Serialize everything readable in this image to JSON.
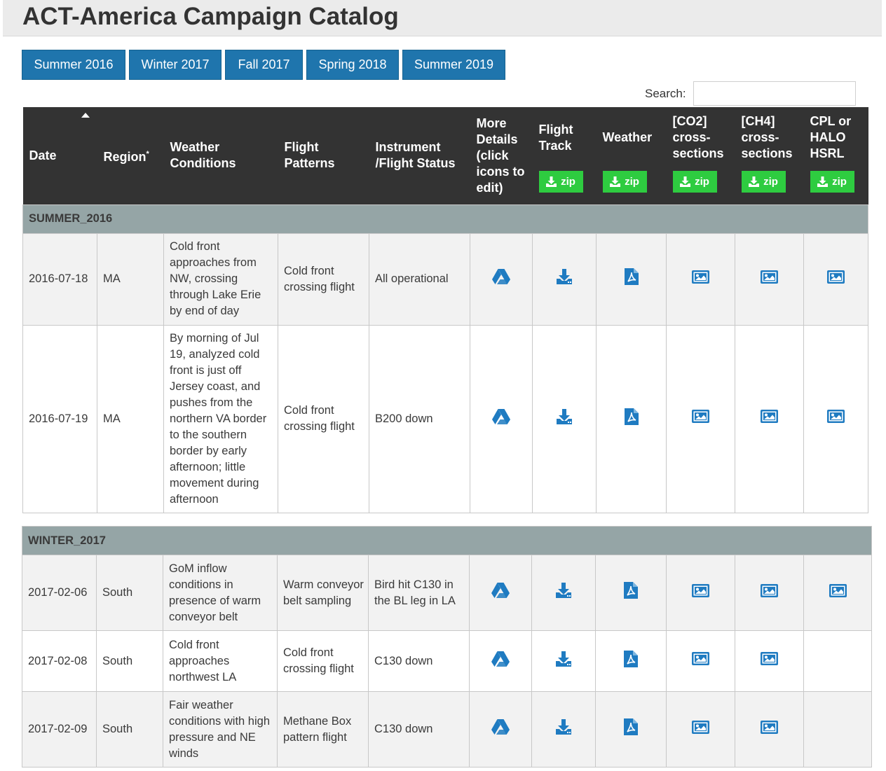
{
  "page": {
    "title": "ACT-America Campaign Catalog"
  },
  "tabs": [
    "Summer 2016",
    "Winter 2017",
    "Fall 2017",
    "Spring 2018",
    "Summer 2019"
  ],
  "search": {
    "label": "Search:",
    "value": ""
  },
  "table": {
    "headers": {
      "date": "Date",
      "region": "Region",
      "region_mark": "*",
      "weather": "Weather Conditions",
      "flight_patterns": "Flight Patterns",
      "instrument": "Instrument /Flight Status",
      "more_details": "More Details (click icons to edit)",
      "flight_track": "Flight Track",
      "weather_files": "Weather",
      "co2": "[CO2] cross-sections",
      "ch4": "[CH4] cross-sections",
      "cpl": "CPL or HALO HSRL"
    },
    "zip_label": "zip",
    "sections": [
      {
        "name": "SUMMER_2016",
        "rows": [
          {
            "date": "2016-07-18",
            "region": "MA",
            "weather": "Cold front approaches from NW, crossing through Lake Erie by end of day",
            "pattern": "Cold front crossing flight",
            "status": "All operational",
            "co2": true,
            "ch4": true,
            "cpl": true
          },
          {
            "date": "2016-07-19",
            "region": "MA",
            "weather": "By morning of Jul 19, analyzed cold front is just off Jersey coast, and pushes from the northern VA border to the southern border by early afternoon; little movement during afternoon",
            "pattern": "Cold front crossing flight",
            "status": "B200 down",
            "co2": true,
            "ch4": true,
            "cpl": true
          }
        ]
      },
      {
        "name": "WINTER_2017",
        "rows": [
          {
            "date": "2017-02-06",
            "region": "South",
            "weather": "GoM inflow conditions in presence of warm conveyor belt",
            "pattern": "Warm conveyor belt sampling",
            "status": "Bird hit C130 in the BL leg in LA",
            "co2": true,
            "ch4": true,
            "cpl": true
          },
          {
            "date": "2017-02-08",
            "region": "South",
            "weather": "Cold front approaches northwest LA",
            "pattern": "Cold front crossing flight",
            "status": "C130 down",
            "co2": true,
            "ch4": true,
            "cpl": false
          },
          {
            "date": "2017-02-09",
            "region": "South",
            "weather": "Fair weather conditions with high pressure and NE winds",
            "pattern": "Methane Box pattern flight",
            "status": "C130 down",
            "co2": true,
            "ch4": true,
            "cpl": false
          }
        ]
      }
    ]
  },
  "icons": {
    "details": "google-drive-icon",
    "track": "download-icon",
    "weather": "pdf-file-icon",
    "cross_section": "image-icon",
    "zip": "download-icon"
  },
  "colors": {
    "tab_bg": "#1f75ad",
    "zip_bg": "#2ecc40",
    "header_bg": "#333333",
    "section_bg": "#95a5a6",
    "icon": "#1f7bc1"
  }
}
